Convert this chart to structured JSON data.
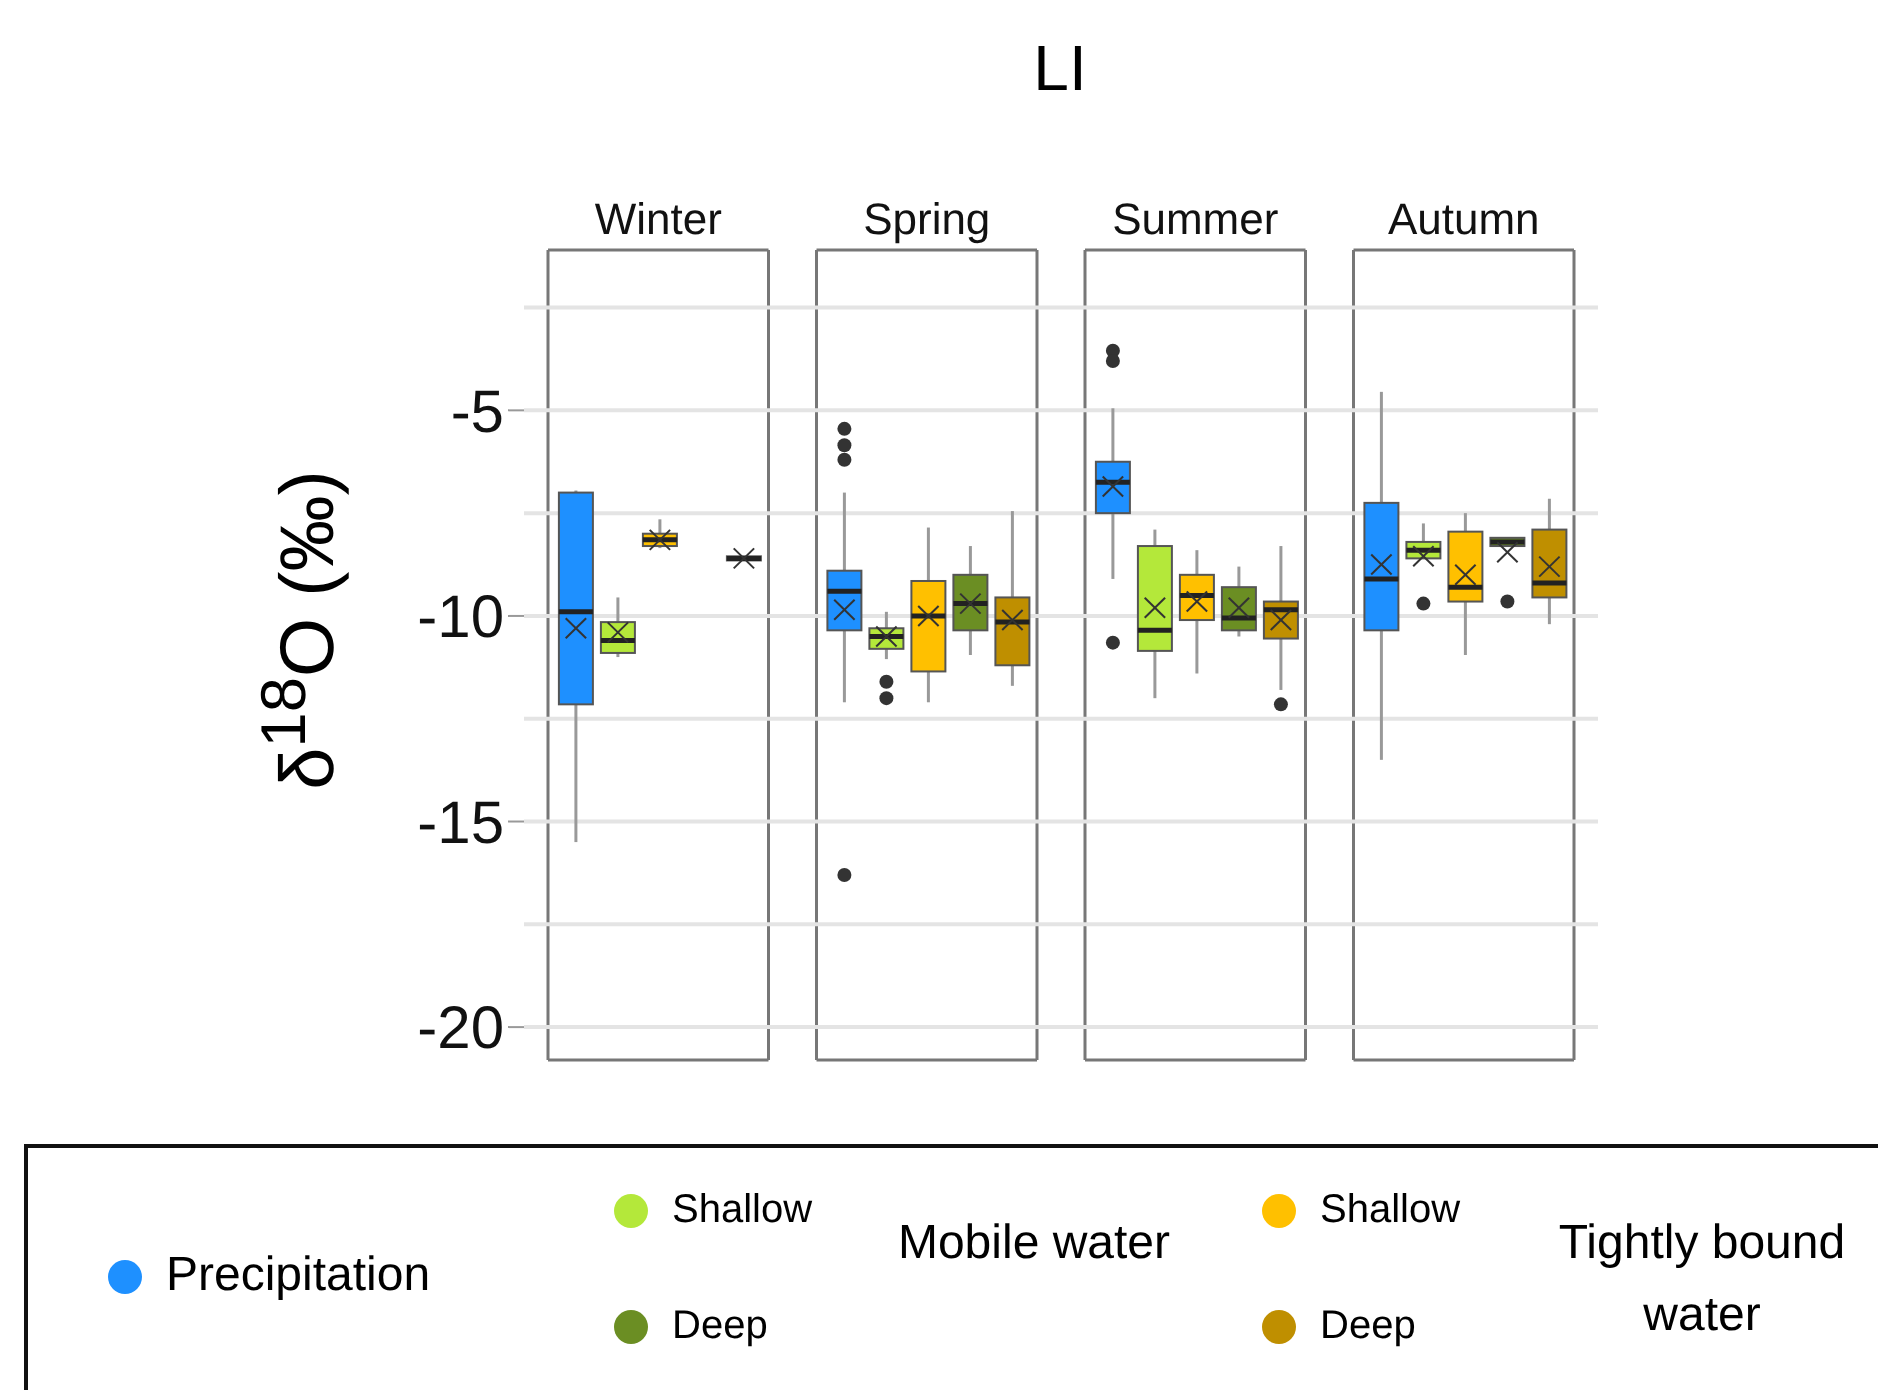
{
  "chart_data": {
    "type": "box",
    "title": "LI",
    "ylabel": "δ$^{18}$O (‰)",
    "categories": [
      "Winter",
      "Spring",
      "Summer",
      "Autumn"
    ],
    "ylim": [
      -20.8,
      -1.1
    ],
    "yticks": [
      {
        "value": -2.5,
        "label": null
      },
      -5,
      {
        "value": -7.5,
        "label": null
      },
      -10,
      {
        "value": -12.5,
        "label": null
      },
      -15,
      {
        "value": -17.5,
        "label": null
      },
      -20
    ],
    "grid": "y",
    "legend": "bottom",
    "annotations": [
      "Mobile water",
      "Tightly bound water"
    ],
    "series": [
      {
        "name": "Precipitation",
        "color": "#1e90ff",
        "boxes": [
          {
            "low": -15.5,
            "q1": -12.15,
            "median": -9.9,
            "q3": -7.0,
            "high": -6.95,
            "mean": -10.3
          },
          {
            "low": -12.1,
            "q1": -10.35,
            "median": -9.4,
            "q3": -8.9,
            "high": -7.0,
            "mean": -9.85,
            "outliers": [
              -5.45,
              -5.85,
              -6.2,
              -16.3
            ]
          },
          {
            "low": -9.1,
            "q1": -7.5,
            "median": -6.75,
            "q3": -6.25,
            "high": -4.95,
            "mean": -6.85,
            "outliers": [
              -3.55,
              -3.8,
              -10.65
            ]
          },
          {
            "low": -13.5,
            "q1": -10.35,
            "median": -9.1,
            "q3": -7.25,
            "high": -4.55,
            "mean": -8.75
          }
        ]
      },
      {
        "name": "Shallow",
        "color": "#b4e83a",
        "boxes": [
          {
            "low": -11.0,
            "q1": -10.9,
            "median": -10.6,
            "q3": -10.15,
            "high": -9.55,
            "mean": -10.4
          },
          {
            "low": -11.05,
            "q1": -10.8,
            "median": -10.5,
            "q3": -10.3,
            "high": -9.9,
            "mean": -10.5,
            "outliers": [
              -11.6,
              -12.0
            ]
          },
          {
            "low": -12.0,
            "q1": -10.85,
            "median": -10.35,
            "q3": -8.3,
            "high": -7.9,
            "mean": -9.8
          },
          {
            "low": -8.6,
            "q1": -8.6,
            "median": -8.4,
            "q3": -8.2,
            "high": -7.75,
            "mean": -8.55,
            "outliers": [
              -9.7
            ]
          }
        ]
      },
      {
        "name": "Shallow",
        "color": "#ffc000",
        "boxes": [
          {
            "low": -8.35,
            "q1": -8.3,
            "median": -8.15,
            "q3": -8.0,
            "high": -7.65,
            "mean": -8.15
          },
          {
            "low": -12.1,
            "q1": -11.35,
            "median": -10.0,
            "q3": -9.15,
            "high": -7.85,
            "mean": -10.0
          },
          {
            "low": -11.4,
            "q1": -10.1,
            "median": -9.5,
            "q3": -9.0,
            "high": -8.4,
            "mean": -9.65
          },
          {
            "low": -10.95,
            "q1": -9.65,
            "median": -9.3,
            "q3": -7.95,
            "high": -7.5,
            "mean": -9.0
          }
        ]
      },
      {
        "name": "Deep",
        "color": "#6b8e23",
        "boxes": [
          null,
          {
            "low": -10.95,
            "q1": -10.35,
            "median": -9.7,
            "q3": -9.0,
            "high": -8.3,
            "mean": -9.7
          },
          {
            "low": -10.5,
            "q1": -10.35,
            "median": -10.05,
            "q3": -9.3,
            "high": -8.8,
            "mean": -9.8
          },
          {
            "low": -8.3,
            "q1": -8.3,
            "median": -8.2,
            "q3": -8.1,
            "high": -8.1,
            "mean": -8.45,
            "outliers": [
              -9.65
            ]
          }
        ]
      },
      {
        "name": "Deep",
        "color": "#bf8f00",
        "boxes": [
          {
            "low": -8.65,
            "q1": -8.65,
            "median": -8.6,
            "q3": -8.55,
            "high": -8.55,
            "mean": -8.6
          },
          {
            "low": -11.7,
            "q1": -11.2,
            "median": -10.15,
            "q3": -9.55,
            "high": -7.45,
            "mean": -10.1
          },
          {
            "low": -11.8,
            "q1": -10.55,
            "median": -9.85,
            "q3": -9.65,
            "high": -8.3,
            "mean": -10.1,
            "outliers": [
              -12.15
            ]
          },
          {
            "low": -10.2,
            "q1": -9.55,
            "median": -9.2,
            "q3": -7.9,
            "high": -7.15,
            "mean": -8.8
          }
        ]
      }
    ]
  }
}
